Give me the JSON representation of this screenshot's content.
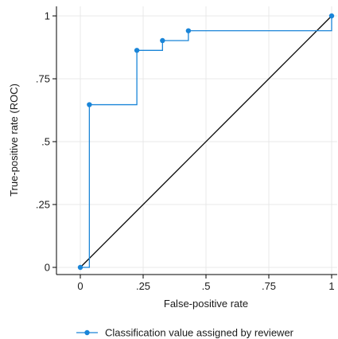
{
  "chart_data": {
    "type": "line",
    "xlabel": "False-positive rate",
    "ylabel": "True-positive rate (ROC)",
    "xlim": [
      0,
      1
    ],
    "ylim": [
      0,
      1
    ],
    "x_ticks": [
      0,
      0.25,
      0.5,
      0.75,
      1
    ],
    "x_tick_labels": [
      "0",
      ".25",
      ".5",
      ".75",
      "1"
    ],
    "y_ticks": [
      0,
      0.25,
      0.5,
      0.75,
      1
    ],
    "y_tick_labels": [
      "0",
      ".25",
      ".5",
      ".75",
      "1"
    ],
    "grid": true,
    "legend_position": "bottom",
    "series": [
      {
        "name": "Classification value assigned by reviewer",
        "color": "#1a85d8",
        "style": "step",
        "x": [
          0,
          0.036,
          0.225,
          0.327,
          0.43,
          1
        ],
        "y": [
          0,
          0.647,
          0.863,
          0.902,
          0.941,
          1
        ]
      }
    ],
    "reference_line": {
      "x": [
        0,
        1
      ],
      "y": [
        0,
        1
      ],
      "color": "#000000"
    }
  }
}
